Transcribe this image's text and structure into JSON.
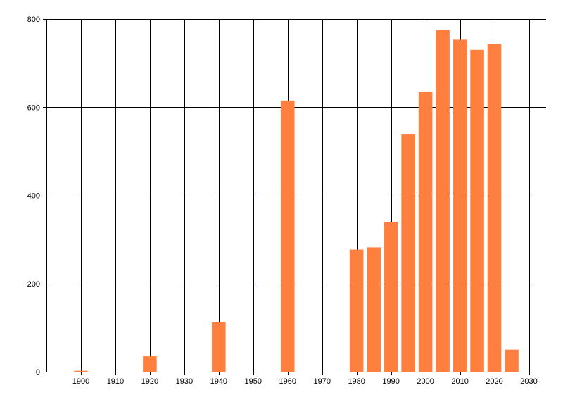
{
  "chart_data": {
    "type": "bar",
    "title": "",
    "xlabel": "",
    "ylabel": "",
    "xlim": [
      1890,
      2035
    ],
    "ylim": [
      0,
      800
    ],
    "x_ticks": [
      1900,
      1910,
      1920,
      1930,
      1940,
      1950,
      1960,
      1970,
      1980,
      1990,
      2000,
      2010,
      2020,
      2030
    ],
    "y_ticks": [
      0,
      200,
      400,
      600,
      800
    ],
    "grid": true,
    "legend": "none",
    "bar_width_years": 4,
    "bar_color": "#ff7f3f",
    "x": [
      1900,
      1920,
      1940,
      1960,
      1980,
      1985,
      1990,
      1995,
      2000,
      2005,
      2010,
      2015,
      2020,
      2025
    ],
    "values": [
      2,
      35,
      112,
      615,
      277,
      282,
      340,
      538,
      635,
      775,
      753,
      730,
      743,
      50
    ]
  }
}
